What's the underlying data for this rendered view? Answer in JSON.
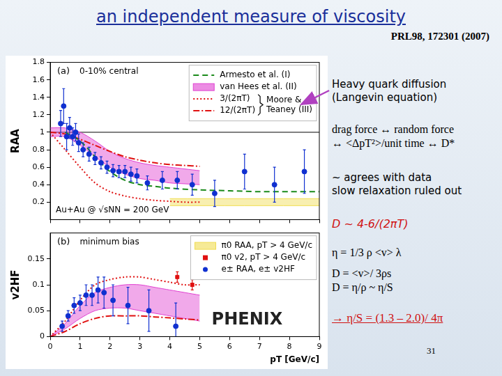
{
  "title": "an independent measure of viscosity",
  "reference": "PRL98, 172301 (2007)",
  "page_number": 31,
  "notes": {
    "heading": [
      "Heavy quark diffusion",
      "(Langevin equation)"
    ],
    "relations": [
      "drag force ↔ random force",
      "↔ <ΔpT²>/unit time ↔ D*"
    ],
    "result": [
      "~ agrees with data",
      "slow relaxation ruled out"
    ],
    "estimate": "D ~ 4-6/(2πT)",
    "formulas": [
      "η = 1/3 ρ <v> λ",
      "D = <v>/ 3ρs",
      "D = η/ρ ~ η/S"
    ],
    "conclusion": "→ η/S = (1.3 – 2.0)/ 4π"
  },
  "chart_data": [
    {
      "type": "line",
      "panel_label": "(a)",
      "subtitle": "0-10% central",
      "annotation": "Au+Au @ √sNN = 200 GeV",
      "y_label": "RAA",
      "xlim": [
        0,
        9
      ],
      "xticks": [
        0,
        1,
        2,
        3,
        4,
        5,
        6,
        7,
        8,
        9
      ],
      "ylim": [
        0,
        1.8
      ],
      "yticks": [
        0.2,
        0.4,
        0.6,
        0.8,
        1,
        1.2,
        1.4,
        1.6,
        1.8
      ],
      "tick_labels": "y",
      "grid": false,
      "legend": "upper right",
      "hline": 1,
      "series": [
        {
          "name": "Armesto et al. (I)",
          "color": "#1a8a1a",
          "line_style": "dashed",
          "x": [
            0.5,
            1,
            1.5,
            2,
            2.5,
            3,
            3.5,
            4,
            5,
            6,
            7,
            8,
            9
          ],
          "values": [
            1.0,
            0.9,
            0.72,
            0.55,
            0.45,
            0.4,
            0.38,
            0.36,
            0.34,
            0.33,
            0.32,
            0.32,
            0.32
          ]
        },
        {
          "name": "van Hees et al. (II)",
          "type": "band",
          "color": "#e040d0",
          "x": [
            0,
            0.5,
            1,
            1.5,
            2,
            2.5,
            3,
            3.5,
            4,
            4.5,
            5
          ],
          "low": [
            0.95,
            0.95,
            0.85,
            0.72,
            0.6,
            0.52,
            0.47,
            0.45,
            0.42,
            0.41,
            0.4
          ],
          "high": [
            1.05,
            1.05,
            1.0,
            0.9,
            0.78,
            0.7,
            0.65,
            0.62,
            0.6,
            0.58,
            0.56
          ]
        },
        {
          "name": "3/(2πT)",
          "group": "Moore & Teaney (III)",
          "color": "#e01010",
          "line_style": "dotted",
          "x": [
            0,
            0.5,
            1,
            1.5,
            2,
            2.5,
            3,
            3.5,
            4,
            4.5,
            5
          ],
          "values": [
            1.0,
            0.8,
            0.6,
            0.42,
            0.32,
            0.27,
            0.24,
            0.22,
            0.21,
            0.2,
            0.2
          ]
        },
        {
          "name": "12/(2πT)",
          "group": "Moore & Teaney (III)",
          "color": "#e01010",
          "line_style": "dashdot",
          "x": [
            0,
            0.5,
            1,
            1.5,
            2,
            2.5,
            3,
            3.5,
            4,
            4.5,
            5
          ],
          "values": [
            1.0,
            0.98,
            0.92,
            0.85,
            0.78,
            0.72,
            0.68,
            0.65,
            0.63,
            0.62,
            0.61
          ]
        },
        {
          "type": "band",
          "color": "#f0dc50",
          "x": [
            4,
            9
          ],
          "low": [
            0.16,
            0.16
          ],
          "high": [
            0.24,
            0.24
          ]
        },
        {
          "type": "scatter",
          "marker": "circle",
          "color": "#1030d0",
          "x": [
            0.35,
            0.45,
            0.55,
            0.65,
            0.75,
            0.85,
            0.95,
            1.1,
            1.3,
            1.5,
            1.7,
            1.9,
            2.1,
            2.3,
            2.5,
            2.7,
            2.9,
            3.25,
            3.75,
            4.25,
            4.75,
            5.5,
            6.5,
            7.5,
            8.5
          ],
          "values": [
            1.1,
            1.3,
            0.95,
            1.05,
            0.95,
            1.0,
            0.88,
            0.8,
            0.75,
            0.7,
            0.65,
            0.6,
            0.56,
            0.55,
            0.55,
            0.52,
            0.5,
            0.42,
            0.45,
            0.45,
            0.4,
            0.3,
            0.55,
            0.4,
            0.55
          ],
          "errors": [
            0.15,
            0.2,
            0.15,
            0.12,
            0.1,
            0.1,
            0.1,
            0.08,
            0.08,
            0.07,
            0.07,
            0.07,
            0.07,
            0.07,
            0.07,
            0.08,
            0.08,
            0.08,
            0.1,
            0.1,
            0.12,
            0.15,
            0.2,
            0.2,
            0.25
          ]
        }
      ]
    },
    {
      "type": "line",
      "panel_label": "(b)",
      "subtitle": "minimum bias",
      "logo": "PHENIX",
      "y_label": "v2HF",
      "x_label": "pT [GeV/c]",
      "xlim": [
        0,
        9
      ],
      "xticks": [
        0,
        1,
        2,
        3,
        4,
        5,
        6,
        7,
        8,
        9
      ],
      "ylim": [
        0,
        0.2
      ],
      "yticks": [
        0,
        0.05,
        0.1,
        0.15
      ],
      "grid": false,
      "legend": "upper right",
      "legend_entries": [
        {
          "name": "π0 RAA, pT > 4 GeV/c",
          "color": "#f0dc50",
          "marker": "box"
        }
      ],
      "series": [
        {
          "type": "band",
          "color": "#e040d0",
          "x": [
            0,
            0.5,
            1,
            1.5,
            2,
            2.5,
            3,
            3.5,
            4,
            4.5,
            5
          ],
          "low": [
            0,
            0.015,
            0.035,
            0.05,
            0.055,
            0.055,
            0.05,
            0.045,
            0.04,
            0.035,
            0.03
          ],
          "high": [
            0,
            0.025,
            0.06,
            0.085,
            0.095,
            0.1,
            0.1,
            0.095,
            0.09,
            0.085,
            0.08
          ]
        },
        {
          "color": "#e01010",
          "line_style": "dotted",
          "x": [
            0,
            0.5,
            1,
            1.5,
            2,
            2.5,
            3,
            3.5,
            4,
            4.5,
            5
          ],
          "values": [
            0,
            0.03,
            0.07,
            0.1,
            0.11,
            0.115,
            0.115,
            0.11,
            0.105,
            0.1,
            0.1
          ]
        },
        {
          "color": "#e01010",
          "line_style": "dashdot",
          "x": [
            0,
            0.5,
            1,
            1.5,
            2,
            2.5,
            3,
            3.5,
            4,
            4.5,
            5
          ],
          "values": [
            0,
            0.01,
            0.025,
            0.035,
            0.04,
            0.04,
            0.04,
            0.038,
            0.036,
            0.034,
            0.032
          ]
        },
        {
          "name": "π0 v2, pT > 4 GeV/c",
          "type": "scatter",
          "marker": "rect",
          "color": "#e01010",
          "x": [
            4.25,
            4.75
          ],
          "values": [
            0.115,
            0.1
          ],
          "errors": [
            0.01,
            0.01
          ]
        },
        {
          "name": "e± RAA, e± v2HF",
          "type": "scatter",
          "marker": "circle",
          "color": "#1030d0",
          "x": [
            0.4,
            0.6,
            0.8,
            1.0,
            1.2,
            1.4,
            1.6,
            1.8,
            2.1,
            2.6,
            3.3,
            4.2
          ],
          "values": [
            0.02,
            0.04,
            0.06,
            0.065,
            0.08,
            0.08,
            0.09,
            0.085,
            0.07,
            0.06,
            0.05,
            0.02
          ],
          "errors": [
            0.01,
            0.01,
            0.015,
            0.015,
            0.02,
            0.02,
            0.025,
            0.03,
            0.03,
            0.035,
            0.04,
            0.045
          ]
        }
      ]
    }
  ]
}
